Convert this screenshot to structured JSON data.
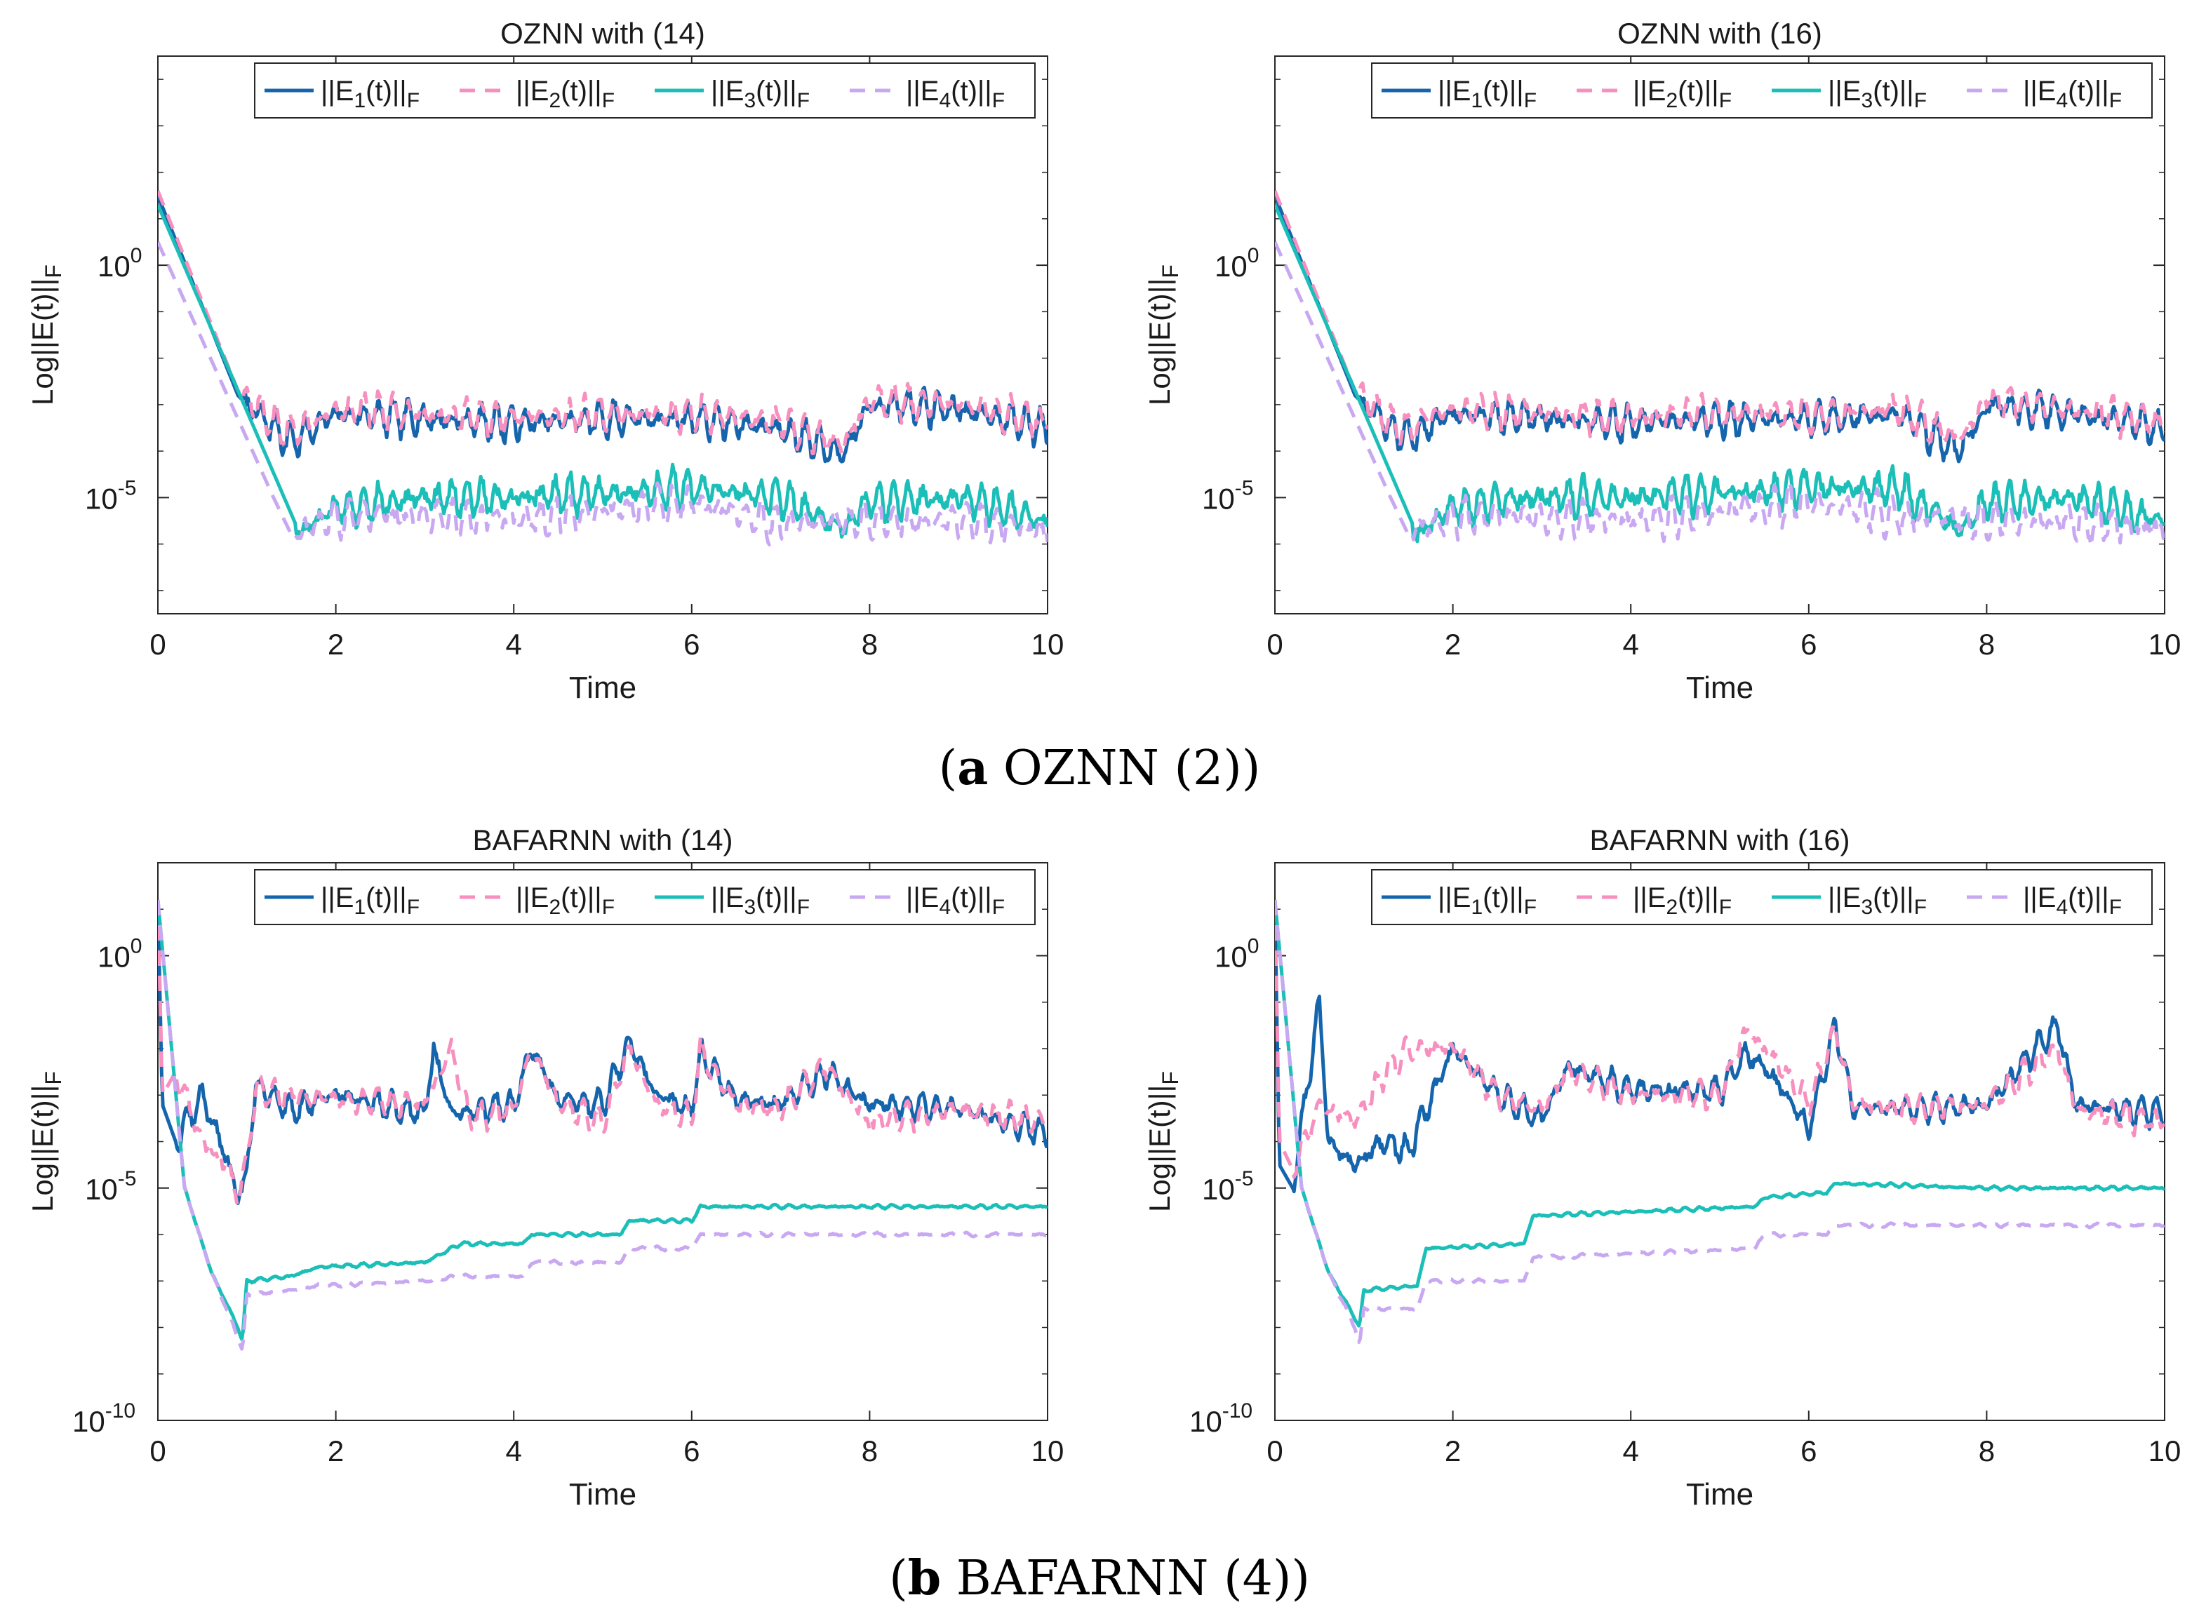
{
  "captions": [
    {
      "letter": "a",
      "text": " OZNN (2)"
    },
    {
      "letter": "b",
      "text": " BAFARNN (4)"
    }
  ],
  "colors": {
    "e1": "#1565ad",
    "e2": "#f78fbf",
    "e3": "#1bbfb8",
    "e4": "#c9a8f2"
  },
  "chart_data": [
    {
      "type": "line",
      "id": "oznn-14",
      "title": "OZNN with (14)",
      "xlabel": "Time",
      "ylabel": "Log||E(t)||_F",
      "xlim": [
        0,
        10
      ],
      "xticks": [
        0,
        2,
        4,
        6,
        8,
        10
      ],
      "ylim_log10": [
        -7.5,
        4.5
      ],
      "yticks_log10": [
        0,
        -5
      ],
      "grid": false,
      "legend": "top",
      "series": [
        {
          "name": "||E1(t)||F",
          "style": "solid",
          "x": [
            0,
            0.9,
            1.0,
            1.3,
            1.5,
            2,
            3,
            4,
            5,
            6,
            7,
            7.7,
            8,
            9,
            10
          ],
          "log10": [
            1.5,
            -2.8,
            -3.0,
            -3.5,
            -3.8,
            -3.2,
            -3.3,
            -3.4,
            -3.3,
            -3.3,
            -3.5,
            -4.1,
            -3.0,
            -3.1,
            -3.5
          ]
        },
        {
          "name": "||E2(t)||F",
          "style": "dashed",
          "x": [
            0,
            0.9,
            1.0,
            1.3,
            1.5,
            2,
            3,
            4,
            5,
            6,
            7,
            7.7,
            8,
            9,
            10
          ],
          "log10": [
            1.6,
            -2.7,
            -2.9,
            -3.4,
            -3.6,
            -3.1,
            -3.2,
            -3.3,
            -3.2,
            -3.2,
            -3.4,
            -3.9,
            -2.9,
            -3.0,
            -3.4
          ]
        },
        {
          "name": "||E3(t)||F",
          "style": "solid",
          "x": [
            0,
            1.6,
            2,
            3,
            4,
            5,
            6,
            7,
            7.7,
            8,
            9,
            10
          ],
          "log10": [
            1.3,
            -5.8,
            -5.2,
            -5.0,
            -5.0,
            -4.9,
            -4.8,
            -5.0,
            -5.7,
            -5.1,
            -5.0,
            -5.5
          ]
        },
        {
          "name": "||E4(t)||F",
          "style": "dashed",
          "x": [
            0,
            1.3,
            1.5,
            2,
            3,
            4,
            5,
            6,
            7,
            8,
            9,
            10
          ],
          "log10": [
            0.5,
            -5.0,
            -5.8,
            -5.4,
            -5.4,
            -5.5,
            -5.3,
            -5.1,
            -5.6,
            -5.5,
            -5.5,
            -5.7
          ]
        }
      ]
    },
    {
      "type": "line",
      "id": "oznn-16",
      "title": "OZNN with (16)",
      "xlabel": "Time",
      "ylabel": "Log||E(t)||_F",
      "xlim": [
        0,
        10
      ],
      "xticks": [
        0,
        2,
        4,
        6,
        8,
        10
      ],
      "ylim_log10": [
        -7.5,
        4.5
      ],
      "yticks_log10": [
        0,
        -5
      ],
      "grid": false,
      "legend": "top",
      "series": [
        {
          "name": "||E1(t)||F",
          "style": "solid",
          "x": [
            0,
            0.9,
            1.0,
            1.3,
            1.5,
            2,
            3,
            4,
            5,
            6,
            7,
            7.7,
            8,
            9,
            10
          ],
          "log10": [
            1.5,
            -2.8,
            -3.0,
            -3.5,
            -3.7,
            -3.2,
            -3.3,
            -3.4,
            -3.3,
            -3.3,
            -3.2,
            -4.0,
            -3.0,
            -3.2,
            -3.5
          ]
        },
        {
          "name": "||E2(t)||F",
          "style": "dashed",
          "x": [
            0,
            0.9,
            1.0,
            1.3,
            1.5,
            2,
            3,
            4,
            5,
            6,
            7,
            7.7,
            8,
            9,
            10
          ],
          "log10": [
            1.6,
            -2.7,
            -2.9,
            -3.4,
            -3.5,
            -3.1,
            -3.2,
            -3.3,
            -3.2,
            -3.2,
            -3.1,
            -3.8,
            -2.9,
            -3.1,
            -3.4
          ]
        },
        {
          "name": "||E3(t)||F",
          "style": "solid",
          "x": [
            0,
            1.6,
            2,
            3,
            4,
            5,
            6,
            7,
            7.7,
            8,
            9,
            10
          ],
          "log10": [
            1.3,
            -5.8,
            -5.2,
            -5.0,
            -5.0,
            -4.9,
            -4.8,
            -4.8,
            -5.7,
            -5.1,
            -5.0,
            -5.5
          ]
        },
        {
          "name": "||E4(t)||F",
          "style": "dashed",
          "x": [
            0,
            1.3,
            1.5,
            2,
            3,
            4,
            5,
            6,
            7,
            8,
            9,
            10
          ],
          "log10": [
            0.5,
            -5.0,
            -5.8,
            -5.4,
            -5.4,
            -5.5,
            -5.3,
            -5.1,
            -5.4,
            -5.5,
            -5.5,
            -5.7
          ]
        }
      ]
    },
    {
      "type": "line",
      "id": "bafarnn-14",
      "title": "BAFARNN with (14)",
      "xlabel": "Time",
      "ylabel": "Log||E(t)||_F",
      "xlim": [
        0,
        10
      ],
      "xticks": [
        0,
        2,
        4,
        6,
        8,
        10
      ],
      "ylim_log10": [
        -10,
        2
      ],
      "yticks_log10": [
        0,
        -5,
        -10
      ],
      "grid": false,
      "legend": "top",
      "series": [
        {
          "name": "||E1(t)||F",
          "style": "solid",
          "x": [
            0,
            0.05,
            0.2,
            0.5,
            0.8,
            0.9,
            1.0,
            1.1,
            1.5,
            2,
            3,
            3.1,
            3.3,
            4,
            4.2,
            4.5,
            5,
            5.3,
            5.6,
            6,
            6.1,
            6.5,
            7,
            7.5,
            8,
            9,
            10
          ],
          "log10": [
            1.2,
            -3.2,
            -4.0,
            -3.0,
            -4.5,
            -5.3,
            -4.6,
            -2.8,
            -3.3,
            -3.0,
            -3.4,
            -2.0,
            -3.4,
            -3.2,
            -2.0,
            -3.1,
            -3.2,
            -1.9,
            -3.0,
            -3.3,
            -2.1,
            -3.1,
            -3.2,
            -2.5,
            -3.2,
            -3.3,
            -3.8
          ]
        },
        {
          "name": "||E2(t)||F",
          "style": "dashed",
          "x": [
            0,
            0.05,
            0.2,
            0.5,
            0.8,
            0.9,
            1.0,
            1.1,
            1.5,
            2,
            3,
            3.3,
            3.5,
            4,
            4.2,
            4.5,
            5,
            5.3,
            5.6,
            6,
            6.1,
            6.5,
            7,
            7.5,
            8,
            9,
            10
          ],
          "log10": [
            1.2,
            -3.0,
            -2.5,
            -4.0,
            -4.6,
            -5.2,
            -4.4,
            -2.9,
            -3.0,
            -3.1,
            -3.2,
            -2.0,
            -3.5,
            -3.3,
            -2.0,
            -3.2,
            -3.6,
            -2.0,
            -3.2,
            -3.5,
            -2.1,
            -3.2,
            -3.3,
            -2.4,
            -3.6,
            -3.3,
            -3.6
          ]
        },
        {
          "name": "||E3(t)||F",
          "style": "solid",
          "x": [
            0,
            0.3,
            0.6,
            0.9,
            0.95,
            1.0,
            1.5,
            1.8,
            3.0,
            3.4,
            4.1,
            4.2,
            5.2,
            5.3,
            6.0,
            6.1,
            8.0,
            10
          ],
          "log10": [
            1.2,
            -5.0,
            -6.8,
            -8.0,
            -8.3,
            -7.0,
            -6.9,
            -6.7,
            -6.6,
            -6.2,
            -6.2,
            -6.0,
            -6.0,
            -5.7,
            -5.7,
            -5.4,
            -5.4,
            -5.4
          ]
        },
        {
          "name": "||E4(t)||F",
          "style": "dashed",
          "x": [
            0,
            0.3,
            0.6,
            0.9,
            0.95,
            1.0,
            1.5,
            1.8,
            3.0,
            3.4,
            4.1,
            4.2,
            5.2,
            5.3,
            6.0,
            6.1,
            8.0,
            10
          ],
          "log10": [
            1.2,
            -5.0,
            -6.8,
            -8.2,
            -8.5,
            -7.3,
            -7.2,
            -7.1,
            -7.0,
            -6.9,
            -6.9,
            -6.6,
            -6.6,
            -6.3,
            -6.3,
            -6.0,
            -6.0,
            -6.0
          ]
        }
      ]
    },
    {
      "type": "line",
      "id": "bafarnn-16",
      "title": "BAFARNN with (16)",
      "xlabel": "Time",
      "ylabel": "Log||E(t)||_F",
      "xlim": [
        0,
        10
      ],
      "xticks": [
        0,
        2,
        4,
        6,
        8,
        10
      ],
      "ylim_log10": [
        -10,
        2
      ],
      "yticks_log10": [
        0,
        -5,
        -10
      ],
      "grid": false,
      "legend": "top",
      "series": [
        {
          "name": "||E1(t)||F",
          "style": "solid",
          "x": [
            0,
            0.05,
            0.2,
            0.5,
            0.6,
            0.9,
            1.2,
            1.5,
            2.0,
            2.5,
            3.0,
            3.3,
            4.0,
            5.0,
            5.3,
            5.6,
            6.0,
            6.3,
            6.5,
            7,
            8,
            8.8,
            9,
            10
          ],
          "log10": [
            1.2,
            -4.5,
            -5.0,
            -1.0,
            -4.0,
            -4.5,
            -4.0,
            -4.2,
            -2.0,
            -3.0,
            -3.5,
            -2.4,
            -2.9,
            -2.9,
            -2.1,
            -2.6,
            -3.7,
            -1.5,
            -3.3,
            -3.3,
            -3.2,
            -1.5,
            -3.2,
            -3.4
          ]
        },
        {
          "name": "||E2(t)||F",
          "style": "dashed",
          "x": [
            0,
            0.05,
            0.2,
            0.5,
            0.9,
            1.2,
            1.5,
            2.0,
            2.5,
            3.0,
            3.3,
            4.0,
            5.0,
            5.3,
            5.6,
            6.0,
            6.3,
            6.5,
            7,
            8,
            8.8,
            9,
            10
          ],
          "log10": [
            1.2,
            -4.0,
            -4.6,
            -3.2,
            -3.6,
            -2.6,
            -2.0,
            -2.0,
            -3.0,
            -3.3,
            -2.5,
            -3.0,
            -3.0,
            -1.6,
            -2.2,
            -3.2,
            -1.6,
            -3.2,
            -3.3,
            -3.2,
            -2.0,
            -3.3,
            -3.6
          ]
        },
        {
          "name": "||E3(t)||F",
          "style": "solid",
          "x": [
            0,
            0.3,
            0.6,
            0.9,
            0.95,
            1.0,
            1.6,
            1.7,
            2.8,
            2.9,
            5.4,
            5.5,
            6.2,
            6.3,
            8.0,
            10
          ],
          "log10": [
            1.2,
            -5.0,
            -6.8,
            -7.8,
            -8.0,
            -7.2,
            -7.1,
            -6.3,
            -6.2,
            -5.6,
            -5.4,
            -5.2,
            -5.1,
            -4.9,
            -5.0,
            -5.0
          ]
        },
        {
          "name": "||E4(t)||F",
          "style": "dashed",
          "x": [
            0,
            0.3,
            0.6,
            0.9,
            0.95,
            1.0,
            1.6,
            1.7,
            2.8,
            2.9,
            5.4,
            5.5,
            6.2,
            6.3,
            8.0,
            8.8,
            10
          ],
          "log10": [
            1.2,
            -5.0,
            -6.8,
            -8.0,
            -8.4,
            -7.6,
            -7.6,
            -7.0,
            -7.0,
            -6.5,
            -6.3,
            -6.0,
            -6.0,
            -5.8,
            -5.8,
            -5.8,
            -5.8
          ]
        }
      ]
    }
  ]
}
